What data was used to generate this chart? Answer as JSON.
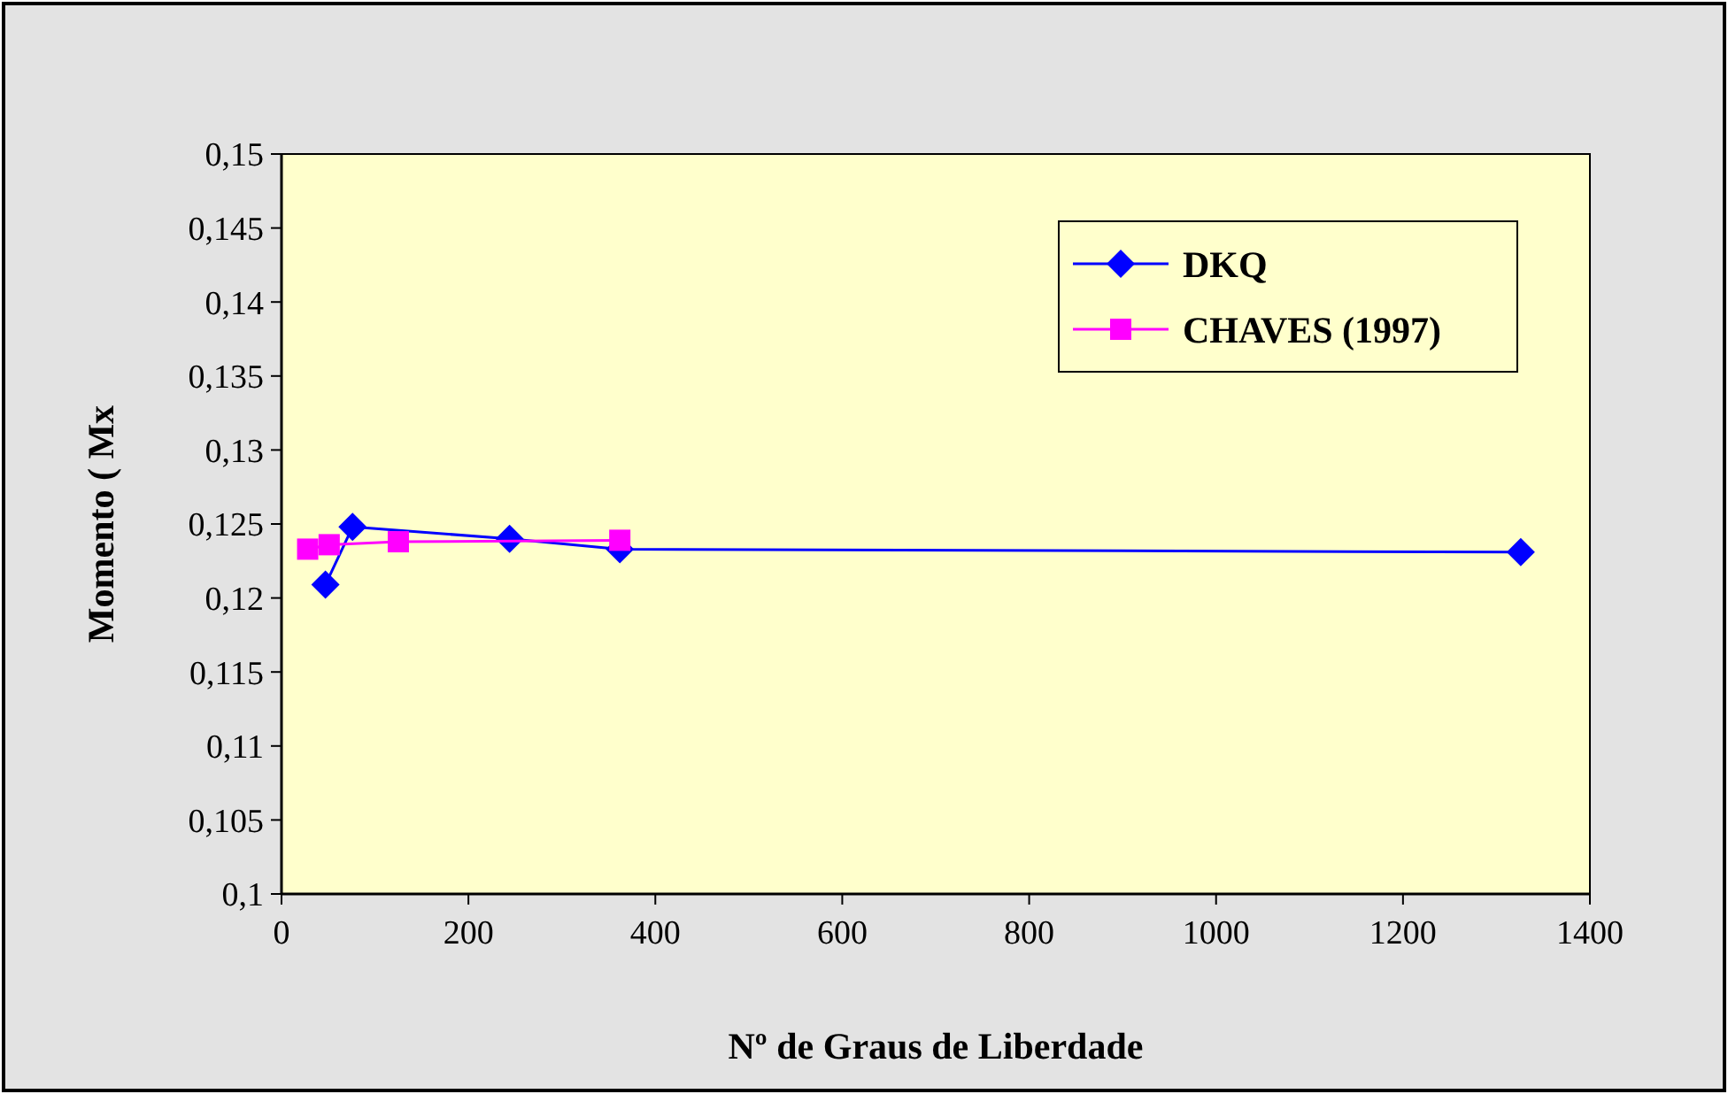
{
  "chart_data": {
    "type": "line",
    "xlabel": "Nº de Graus de Liberdade",
    "ylabel": "Momento ( Mx",
    "xlim": [
      0,
      1400
    ],
    "xticks": [
      0,
      200,
      400,
      600,
      800,
      1000,
      1200,
      1400
    ],
    "ylim": [
      0.1,
      0.15
    ],
    "yticks": [
      {
        "value": 0.1,
        "label": "0,1"
      },
      {
        "value": 0.105,
        "label": "0,105"
      },
      {
        "value": 0.11,
        "label": "0,11"
      },
      {
        "value": 0.115,
        "label": "0,115"
      },
      {
        "value": 0.12,
        "label": "0,12"
      },
      {
        "value": 0.125,
        "label": "0,125"
      },
      {
        "value": 0.13,
        "label": "0,13"
      },
      {
        "value": 0.135,
        "label": "0,135"
      },
      {
        "value": 0.14,
        "label": "0,14"
      },
      {
        "value": 0.145,
        "label": "0,145"
      },
      {
        "value": 0.15,
        "label": "0,15"
      }
    ],
    "legend": "top right",
    "grid": false,
    "series": [
      {
        "name": "DKQ",
        "color": "#0000ff",
        "marker": "diamond",
        "x": [
          47,
          76,
          244,
          362,
          1326
        ],
        "values": [
          0.1209,
          0.1248,
          0.124,
          0.1233,
          0.1231
        ]
      },
      {
        "name": "CHAVES (1997)",
        "color": "#ff00ff",
        "marker": "square",
        "x": [
          28,
          51,
          125,
          362
        ],
        "values": [
          0.1233,
          0.1236,
          0.1238,
          0.1239
        ]
      }
    ]
  }
}
